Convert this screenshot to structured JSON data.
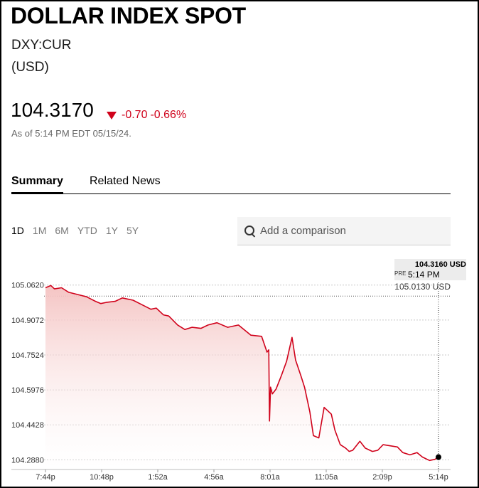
{
  "header": {
    "title": "DOLLAR INDEX SPOT",
    "ticker": "DXY:CUR",
    "currency": "(USD)"
  },
  "quote": {
    "price": "104.3170",
    "change": "-0.70",
    "change_percent": "-0.66%",
    "as_of": "As of 5:14 PM EDT 05/15/24."
  },
  "tabs": [
    {
      "label": "Summary",
      "active": true
    },
    {
      "label": "Related News",
      "active": false
    }
  ],
  "ranges": [
    "1D",
    "1M",
    "6M",
    "YTD",
    "1Y",
    "5Y"
  ],
  "active_range": "1D",
  "search": {
    "placeholder": "Add a comparison"
  },
  "tooltip": {
    "price": "104.3160 USD",
    "pre_label": "PRE",
    "time": "5:14 PM",
    "previous_close": "105.0130 USD"
  },
  "colors": {
    "line": "#d0021b",
    "fill_top": "#f4c1c0",
    "accent_down": "#d0021b"
  },
  "chart_data": {
    "type": "area",
    "x_labels": [
      "7:44p",
      "10:48p",
      "1:52a",
      "4:56a",
      "8:01a",
      "11:05a",
      "2:09p",
      "5:14p"
    ],
    "y_ticks": [
      "105.0620",
      "104.9072",
      "104.7524",
      "104.5976",
      "104.4428",
      "104.2880"
    ],
    "ylim": [
      104.245,
      105.08
    ],
    "previous_close": 105.013,
    "grid": true,
    "x_hours": [
      0,
      0.3,
      0.5,
      0.9,
      1.3,
      1.8,
      2.3,
      2.8,
      3.1,
      3.4,
      3.9,
      4.3,
      4.9,
      5.4,
      5.9,
      6.2,
      6.6,
      6.9,
      7.4,
      7.8,
      8.2,
      8.7,
      9.1,
      9.6,
      10.2,
      10.8,
      11.5,
      12.1,
      12.4,
      12.5,
      12.54,
      12.6,
      12.7,
      12.9,
      13.2,
      13.5,
      13.8,
      14.0,
      14.3,
      14.5,
      14.8,
      15.0,
      15.3,
      15.6,
      16.0,
      16.2,
      16.5,
      16.8,
      17.0,
      17.2,
      17.6,
      17.9,
      18.3,
      18.6,
      18.9,
      19.3,
      19.7,
      20.0,
      20.4,
      20.8,
      21.1,
      21.5,
      21.8,
      22.0
    ],
    "values": [
      105.05,
      105.06,
      105.045,
      105.05,
      105.03,
      105.02,
      105.01,
      104.99,
      104.98,
      104.985,
      104.99,
      105.005,
      104.995,
      104.975,
      104.955,
      104.96,
      104.93,
      104.925,
      104.885,
      104.865,
      104.875,
      104.87,
      104.885,
      104.895,
      104.875,
      104.885,
      104.84,
      104.835,
      104.765,
      104.775,
      104.46,
      104.61,
      104.58,
      104.6,
      104.66,
      104.725,
      104.83,
      104.73,
      104.66,
      104.61,
      104.5,
      104.395,
      104.385,
      104.52,
      104.49,
      104.42,
      104.355,
      104.34,
      104.325,
      104.33,
      104.37,
      104.34,
      104.325,
      104.33,
      104.355,
      104.35,
      104.345,
      104.32,
      104.31,
      104.32,
      104.3,
      104.285,
      104.29,
      104.3
    ]
  }
}
